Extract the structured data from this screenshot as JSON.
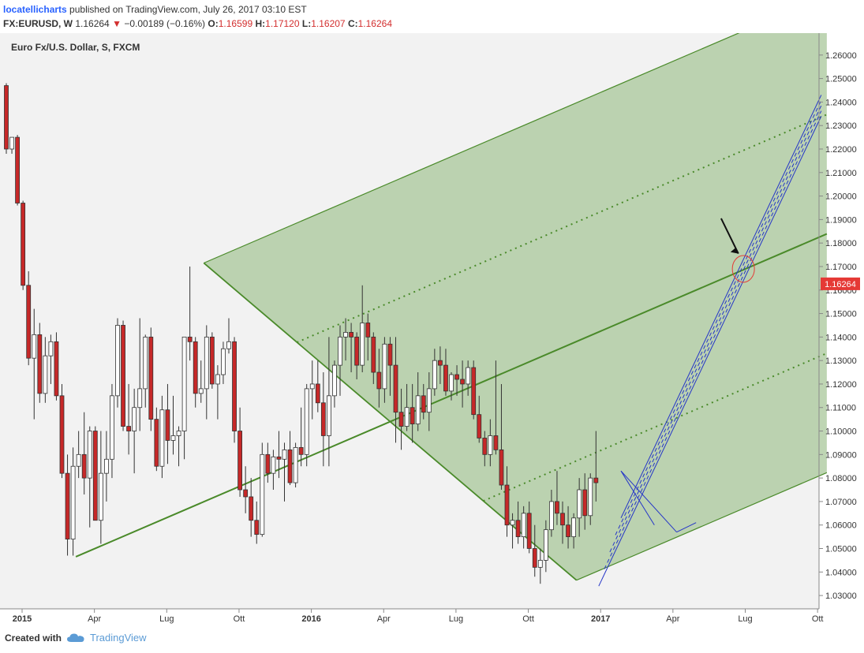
{
  "header": {
    "author": "locatellicharts",
    "published": "published on TradingView.com, July 26, 2017 03:10 EST",
    "symbol": "FX:EURUSD, W",
    "last": "1.16264",
    "change_arrow": "▼",
    "change": "−0.00189 (−0.16%)",
    "o_label": "O:",
    "o": "1.16599",
    "h_label": "H:",
    "h": "1.17120",
    "l_label": "L:",
    "l": "1.16207",
    "c_label": "C:",
    "c": "1.16264"
  },
  "footer": {
    "created_with": "Created with",
    "brand": "TradingView",
    "logo_icon": "tradingview-cloud-icon"
  },
  "colors": {
    "up": "#ffffff",
    "down": "#c62828",
    "wick": "#333333",
    "pitchfork_fill": "#a8c79a",
    "pitchfork_line": "#4a8a2a",
    "channel": "#2535c8",
    "price_tag": "#e53935",
    "annotation": "#e53935"
  },
  "chart_data": {
    "type": "candlestick",
    "title": "Euro Fx/U.S. Dollar, S, FXCM",
    "price_label": "1.16264",
    "ylim": [
      1.025,
      1.27
    ],
    "y_ticks": [
      "1.26000",
      "1.25000",
      "1.24000",
      "1.23000",
      "1.22000",
      "1.21000",
      "1.20000",
      "1.19000",
      "1.18000",
      "1.17000",
      "1.16000",
      "1.15000",
      "1.14000",
      "1.13000",
      "1.12000",
      "1.11000",
      "1.10000",
      "1.09000",
      "1.08000",
      "1.07000",
      "1.06000",
      "1.05000",
      "1.04000",
      "1.03000"
    ],
    "x_ticks": [
      {
        "label": "2015",
        "bold": true,
        "i": 0
      },
      {
        "label": "Apr",
        "bold": false,
        "i": 13
      },
      {
        "label": "Lug",
        "bold": false,
        "i": 26
      },
      {
        "label": "Ott",
        "bold": false,
        "i": 39
      },
      {
        "label": "2016",
        "bold": true,
        "i": 52
      },
      {
        "label": "Apr",
        "bold": false,
        "i": 65
      },
      {
        "label": "Lug",
        "bold": false,
        "i": 78
      },
      {
        "label": "Ott",
        "bold": false,
        "i": 91
      },
      {
        "label": "2017",
        "bold": true,
        "i": 104
      },
      {
        "label": "Apr",
        "bold": false,
        "i": 117
      },
      {
        "label": "Lug",
        "bold": false,
        "i": 130
      },
      {
        "label": "Ott",
        "bold": false,
        "i": 143
      }
    ],
    "candles_ohlc": [
      [
        1.247,
        1.248,
        1.218,
        1.22
      ],
      [
        1.22,
        1.225,
        1.218,
        1.225
      ],
      [
        1.225,
        1.226,
        1.196,
        1.197
      ],
      [
        1.197,
        1.198,
        1.16,
        1.162
      ],
      [
        1.162,
        1.168,
        1.128,
        1.131
      ],
      [
        1.131,
        1.152,
        1.105,
        1.141
      ],
      [
        1.141,
        1.146,
        1.112,
        1.116
      ],
      [
        1.116,
        1.14,
        1.112,
        1.132
      ],
      [
        1.132,
        1.141,
        1.12,
        1.138
      ],
      [
        1.138,
        1.142,
        1.113,
        1.115
      ],
      [
        1.115,
        1.12,
        1.08,
        1.082
      ],
      [
        1.082,
        1.09,
        1.047,
        1.054
      ],
      [
        1.054,
        1.093,
        1.047,
        1.085
      ],
      [
        1.085,
        1.1,
        1.08,
        1.09
      ],
      [
        1.09,
        1.108,
        1.073,
        1.08
      ],
      [
        1.08,
        1.102,
        1.059,
        1.1
      ],
      [
        1.1,
        1.102,
        1.062,
        1.062
      ],
      [
        1.062,
        1.1,
        1.052,
        1.082
      ],
      [
        1.082,
        1.1,
        1.07,
        1.088
      ],
      [
        1.088,
        1.12,
        1.08,
        1.115
      ],
      [
        1.115,
        1.148,
        1.11,
        1.145
      ],
      [
        1.145,
        1.147,
        1.1,
        1.102
      ],
      [
        1.102,
        1.12,
        1.09,
        1.1
      ],
      [
        1.1,
        1.118,
        1.082,
        1.11
      ],
      [
        1.11,
        1.148,
        1.1,
        1.118
      ],
      [
        1.118,
        1.141,
        1.11,
        1.14
      ],
      [
        1.14,
        1.144,
        1.1,
        1.105
      ],
      [
        1.105,
        1.11,
        1.083,
        1.085
      ],
      [
        1.085,
        1.115,
        1.08,
        1.109
      ],
      [
        1.109,
        1.12,
        1.086,
        1.096
      ],
      [
        1.096,
        1.115,
        1.09,
        1.098
      ],
      [
        1.098,
        1.102,
        1.085,
        1.1
      ],
      [
        1.1,
        1.12,
        1.088,
        1.14
      ],
      [
        1.14,
        1.17,
        1.13,
        1.138
      ],
      [
        1.138,
        1.14,
        1.11,
        1.116
      ],
      [
        1.116,
        1.13,
        1.112,
        1.118
      ],
      [
        1.118,
        1.145,
        1.105,
        1.14
      ],
      [
        1.14,
        1.142,
        1.118,
        1.12
      ],
      [
        1.12,
        1.128,
        1.105,
        1.124
      ],
      [
        1.124,
        1.138,
        1.12,
        1.135
      ],
      [
        1.135,
        1.148,
        1.133,
        1.138
      ],
      [
        1.138,
        1.14,
        1.095,
        1.1
      ],
      [
        1.1,
        1.11,
        1.072,
        1.075
      ],
      [
        1.075,
        1.085,
        1.065,
        1.072
      ],
      [
        1.072,
        1.08,
        1.055,
        1.062
      ],
      [
        1.062,
        1.07,
        1.052,
        1.056
      ],
      [
        1.056,
        1.095,
        1.055,
        1.09
      ],
      [
        1.09,
        1.095,
        1.078,
        1.082
      ],
      [
        1.082,
        1.092,
        1.075,
        1.089
      ],
      [
        1.089,
        1.1,
        1.08,
        1.088
      ],
      [
        1.088,
        1.095,
        1.07,
        1.092
      ],
      [
        1.092,
        1.1,
        1.077,
        1.078
      ],
      [
        1.078,
        1.095,
        1.076,
        1.093
      ],
      [
        1.093,
        1.11,
        1.085,
        1.09
      ],
      [
        1.09,
        1.12,
        1.085,
        1.118
      ],
      [
        1.118,
        1.13,
        1.105,
        1.12
      ],
      [
        1.12,
        1.13,
        1.108,
        1.112
      ],
      [
        1.112,
        1.125,
        1.085,
        1.098
      ],
      [
        1.098,
        1.14,
        1.085,
        1.115
      ],
      [
        1.115,
        1.13,
        1.11,
        1.128
      ],
      [
        1.128,
        1.145,
        1.115,
        1.14
      ],
      [
        1.14,
        1.148,
        1.13,
        1.142
      ],
      [
        1.142,
        1.146,
        1.125,
        1.14
      ],
      [
        1.14,
        1.142,
        1.122,
        1.128
      ],
      [
        1.128,
        1.162,
        1.125,
        1.146
      ],
      [
        1.146,
        1.15,
        1.13,
        1.14
      ],
      [
        1.14,
        1.142,
        1.12,
        1.125
      ],
      [
        1.125,
        1.135,
        1.11,
        1.118
      ],
      [
        1.118,
        1.14,
        1.112,
        1.137
      ],
      [
        1.137,
        1.14,
        1.115,
        1.128
      ],
      [
        1.128,
        1.14,
        1.095,
        1.108
      ],
      [
        1.108,
        1.118,
        1.092,
        1.102
      ],
      [
        1.102,
        1.12,
        1.1,
        1.11
      ],
      [
        1.11,
        1.12,
        1.095,
        1.103
      ],
      [
        1.103,
        1.125,
        1.1,
        1.115
      ],
      [
        1.115,
        1.12,
        1.105,
        1.108
      ],
      [
        1.108,
        1.125,
        1.1,
        1.118
      ],
      [
        1.118,
        1.135,
        1.115,
        1.13
      ],
      [
        1.13,
        1.136,
        1.12,
        1.128
      ],
      [
        1.128,
        1.135,
        1.115,
        1.117
      ],
      [
        1.117,
        1.125,
        1.113,
        1.124
      ],
      [
        1.124,
        1.128,
        1.115,
        1.122
      ],
      [
        1.122,
        1.13,
        1.11,
        1.12
      ],
      [
        1.12,
        1.13,
        1.115,
        1.127
      ],
      [
        1.127,
        1.13,
        1.105,
        1.107
      ],
      [
        1.107,
        1.115,
        1.095,
        1.097
      ],
      [
        1.097,
        1.1,
        1.085,
        1.09
      ],
      [
        1.09,
        1.105,
        1.085,
        1.098
      ],
      [
        1.098,
        1.13,
        1.09,
        1.092
      ],
      [
        1.092,
        1.12,
        1.075,
        1.077
      ],
      [
        1.077,
        1.085,
        1.055,
        1.06
      ],
      [
        1.06,
        1.065,
        1.05,
        1.062
      ],
      [
        1.062,
        1.07,
        1.052,
        1.055
      ],
      [
        1.055,
        1.068,
        1.05,
        1.065
      ],
      [
        1.065,
        1.07,
        1.048,
        1.05
      ],
      [
        1.05,
        1.06,
        1.038,
        1.042
      ],
      [
        1.042,
        1.05,
        1.035,
        1.045
      ],
      [
        1.045,
        1.062,
        1.04,
        1.058
      ],
      [
        1.058,
        1.075,
        1.055,
        1.07
      ],
      [
        1.07,
        1.083,
        1.06,
        1.065
      ],
      [
        1.065,
        1.07,
        1.052,
        1.06
      ],
      [
        1.06,
        1.068,
        1.05,
        1.055
      ],
      [
        1.055,
        1.065,
        1.05,
        1.063
      ],
      [
        1.063,
        1.08,
        1.055,
        1.075
      ],
      [
        1.075,
        1.082,
        1.058,
        1.064
      ],
      [
        1.064,
        1.082,
        1.06,
        1.08
      ],
      [
        1.08,
        1.1,
        1.07,
        1.078
      ]
    ]
  }
}
